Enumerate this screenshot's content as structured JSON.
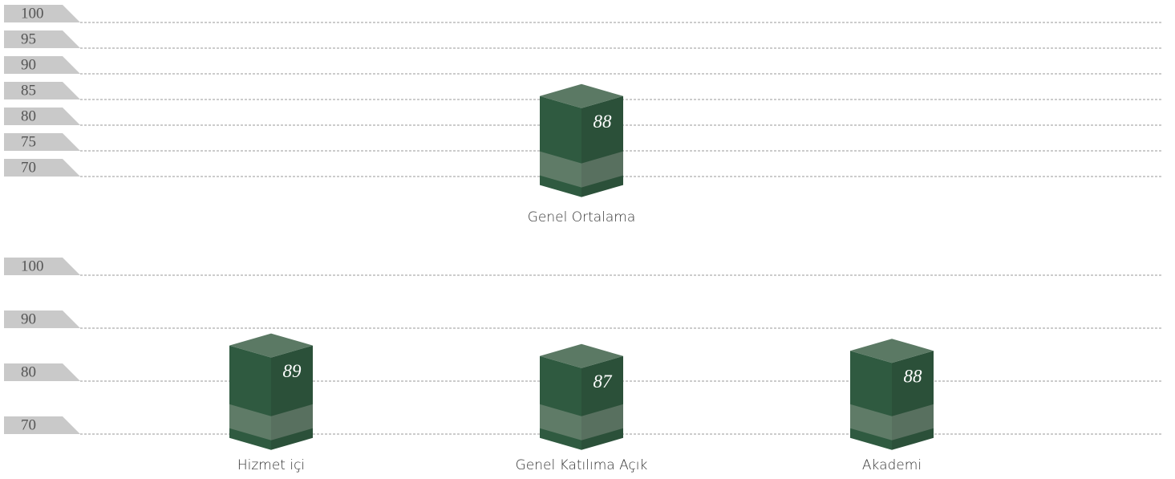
{
  "chart_data": [
    {
      "type": "bar",
      "categories": [
        "Genel Ortalama"
      ],
      "values": [
        88
      ],
      "color": "#2f5a40",
      "ylim": [
        66,
        100
      ],
      "yticks": [
        100,
        95,
        90,
        85,
        80,
        75,
        70
      ],
      "grid": true
    },
    {
      "type": "bar",
      "categories": [
        "Hizmet içi",
        "Genel Katılıma Açık",
        "Akademi"
      ],
      "values": [
        89,
        87,
        88
      ],
      "color": "#2f5a40",
      "ylim": [
        67,
        100
      ],
      "yticks": [
        100,
        90,
        80,
        70
      ],
      "grid": true
    }
  ]
}
